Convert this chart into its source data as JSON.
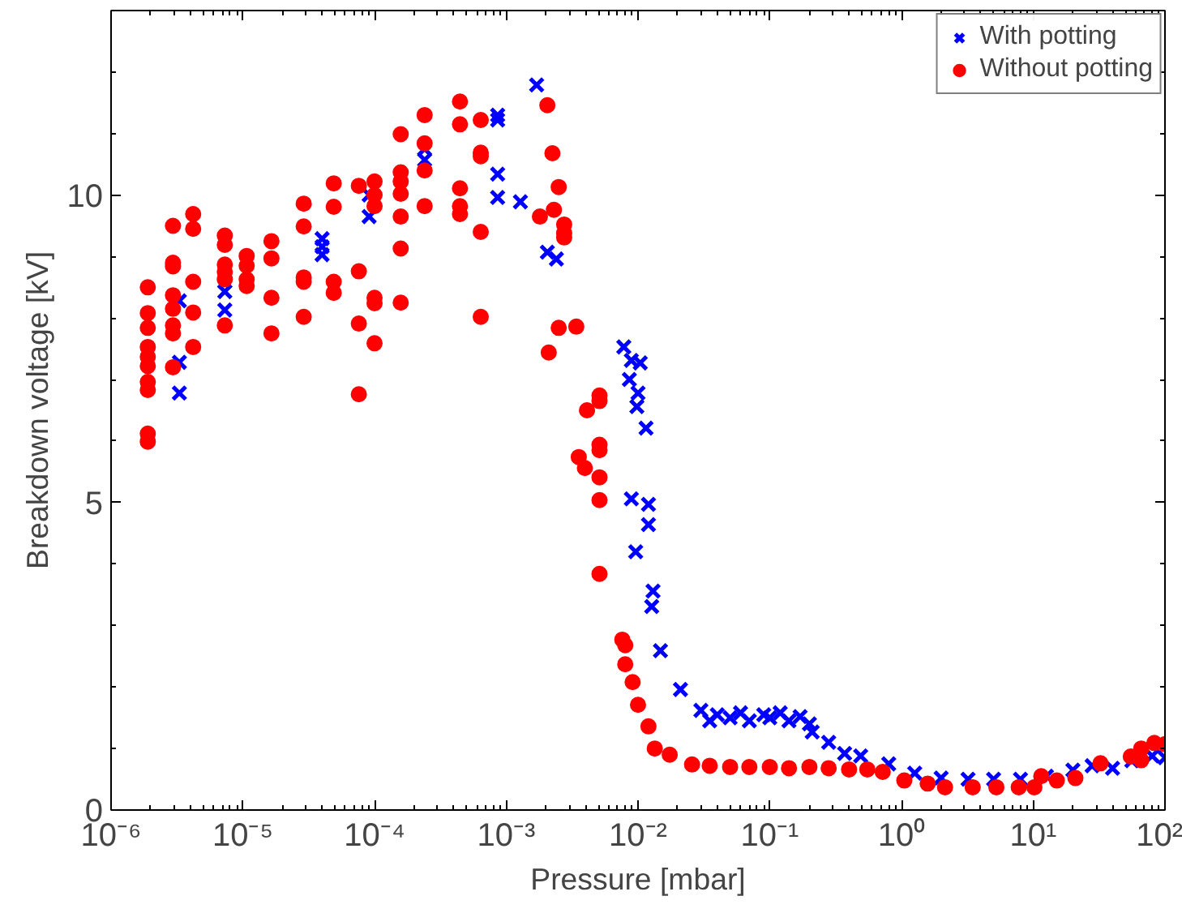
{
  "chart_data": {
    "type": "scatter",
    "xlabel": "Pressure [mbar]",
    "ylabel": "Breakdown voltage [kV]",
    "log": "x",
    "grid": false,
    "legend": "top right",
    "xlim": [
      1e-06,
      100
    ],
    "ylim": [
      0,
      13
    ],
    "xticks": [
      {
        "value": 1e-06,
        "label": "10⁻⁶"
      },
      {
        "value": 1e-05,
        "label": "10⁻⁵"
      },
      {
        "value": 0.0001,
        "label": "10⁻⁴"
      },
      {
        "value": 0.001,
        "label": "10⁻³"
      },
      {
        "value": 0.01,
        "label": "10⁻²"
      },
      {
        "value": 0.1,
        "label": "10⁻¹"
      },
      {
        "value": 1,
        "label": "10⁰"
      },
      {
        "value": 10,
        "label": "10¹"
      },
      {
        "value": 100,
        "label": "10²"
      }
    ],
    "yticks": [
      0,
      5,
      10
    ],
    "series": [
      {
        "name": "With potting",
        "color": "#0000ff",
        "marker": "x",
        "x": [
          3.3e-06,
          3.3e-06,
          3.3e-06,
          7.3e-06,
          7.3e-06,
          7.3e-06,
          4e-05,
          4e-05,
          4e-05,
          9.1e-05,
          9.1e-05,
          0.00024,
          0.00024,
          0.00086,
          0.00086,
          0.00086,
          0.00086,
          0.00128,
          0.0017,
          0.00205,
          0.0024,
          0.0078,
          0.0089,
          0.0104,
          0.0086,
          0.01,
          0.0098,
          0.0115,
          0.0089,
          0.012,
          0.012,
          0.0096,
          0.013,
          0.0127,
          0.0148,
          0.021,
          0.03,
          0.035,
          0.04,
          0.05,
          0.06,
          0.07,
          0.09,
          0.1,
          0.12,
          0.14,
          0.17,
          0.2,
          0.21,
          0.28,
          0.37,
          0.49,
          0.8,
          1.26,
          2,
          3.2,
          5,
          8,
          12.6,
          20,
          28,
          40,
          56,
          80,
          100
        ],
        "values": [
          8.28,
          7.28,
          6.78,
          8.59,
          8.43,
          8.13,
          9.29,
          9.16,
          9.03,
          10.0,
          9.65,
          10.75,
          10.57,
          11.3,
          11.22,
          10.34,
          9.96,
          9.89,
          11.79,
          9.07,
          8.96,
          7.53,
          7.31,
          7.27,
          7.0,
          6.78,
          6.56,
          6.21,
          5.06,
          4.97,
          4.64,
          4.2,
          3.56,
          3.31,
          2.59,
          1.96,
          1.62,
          1.45,
          1.55,
          1.5,
          1.58,
          1.45,
          1.55,
          1.5,
          1.58,
          1.45,
          1.52,
          1.4,
          1.27,
          1.1,
          0.92,
          0.88,
          0.75,
          0.6,
          0.52,
          0.5,
          0.5,
          0.5,
          0.55,
          0.65,
          0.72,
          0.68,
          0.8,
          0.88,
          0.85
        ]
      },
      {
        "name": "Without potting",
        "color": "#ff0000",
        "marker": "circle",
        "x": [
          1.9e-06,
          1.9e-06,
          1.9e-06,
          1.9e-06,
          1.9e-06,
          1.9e-06,
          1.9e-06,
          1.9e-06,
          1.9e-06,
          1.9e-06,
          2.95e-06,
          2.95e-06,
          2.95e-06,
          2.95e-06,
          2.95e-06,
          2.95e-06,
          2.95e-06,
          2.95e-06,
          4.2e-06,
          4.2e-06,
          4.2e-06,
          4.2e-06,
          4.2e-06,
          7.3e-06,
          7.3e-06,
          7.3e-06,
          7.3e-06,
          7.3e-06,
          7.3e-06,
          1.07e-05,
          1.07e-05,
          1.07e-05,
          1.07e-05,
          1.65e-05,
          1.65e-05,
          1.65e-05,
          1.65e-05,
          2.9e-05,
          2.9e-05,
          2.9e-05,
          2.9e-05,
          2.9e-05,
          4.9e-05,
          4.9e-05,
          4.9e-05,
          4.9e-05,
          7.6e-05,
          7.6e-05,
          7.6e-05,
          7.6e-05,
          0.0001,
          0.0001,
          0.0001,
          0.0001,
          0.0001,
          0.0001,
          0.000158,
          0.000158,
          0.000158,
          0.000158,
          0.000158,
          0.000158,
          0.000158,
          0.00024,
          0.00024,
          0.00024,
          0.00024,
          0.000445,
          0.000445,
          0.000445,
          0.000445,
          0.000445,
          0.00064,
          0.00064,
          0.00064,
          0.00064,
          0.00064,
          0.0018,
          0.00205,
          0.0021,
          0.00224,
          0.0023,
          0.0025,
          0.0025,
          0.00275,
          0.00275,
          0.00275,
          0.0034,
          0.00355,
          0.00395,
          0.0041,
          0.0051,
          0.0051,
          0.0051,
          0.0051,
          0.0051,
          0.0051,
          0.0051,
          0.0076,
          0.008,
          0.008,
          0.0091,
          0.01,
          0.012,
          0.0134,
          0.0174,
          0.0257,
          0.035,
          0.05,
          0.07,
          0.1,
          0.14,
          0.2,
          0.28,
          0.4,
          0.55,
          0.72,
          1.05,
          1.58,
          2.14,
          3.47,
          5.25,
          7.76,
          10.2,
          11.5,
          15.1,
          20.9,
          32.4,
          55,
          66,
          66,
          83,
          100
        ],
        "values": [
          8.5,
          8.08,
          7.84,
          7.53,
          7.37,
          7.22,
          6.96,
          6.83,
          6.12,
          5.99,
          9.5,
          8.9,
          8.84,
          8.37,
          8.15,
          7.88,
          7.75,
          7.2,
          9.69,
          9.45,
          8.59,
          8.09,
          7.53,
          9.34,
          9.19,
          8.87,
          8.75,
          8.63,
          7.88,
          9.01,
          8.85,
          8.63,
          8.52,
          9.25,
          8.97,
          8.33,
          7.75,
          9.86,
          9.49,
          8.66,
          8.59,
          8.02,
          10.19,
          9.81,
          8.59,
          8.41,
          10.15,
          8.76,
          7.91,
          6.76,
          10.22,
          10.0,
          9.82,
          8.33,
          8.24,
          7.59,
          10.99,
          10.37,
          10.22,
          10.02,
          9.65,
          9.13,
          8.25,
          11.3,
          10.84,
          10.4,
          9.82,
          11.52,
          11.15,
          10.11,
          9.82,
          9.69,
          11.22,
          10.69,
          10.63,
          9.4,
          8.02,
          9.65,
          11.46,
          7.44,
          10.68,
          9.76,
          10.13,
          7.84,
          9.52,
          9.38,
          9.31,
          7.86,
          5.74,
          5.56,
          6.5,
          6.74,
          6.65,
          5.94,
          5.85,
          5.41,
          5.04,
          3.84,
          2.77,
          2.68,
          2.37,
          2.08,
          1.71,
          1.36,
          1.0,
          0.9,
          0.74,
          0.72,
          0.7,
          0.7,
          0.7,
          0.68,
          0.7,
          0.68,
          0.66,
          0.66,
          0.62,
          0.48,
          0.43,
          0.37,
          0.37,
          0.37,
          0.37,
          0.37,
          0.55,
          0.48,
          0.52,
          0.76,
          0.87,
          1.0,
          0.81,
          1.09,
          1.07
        ]
      }
    ]
  }
}
